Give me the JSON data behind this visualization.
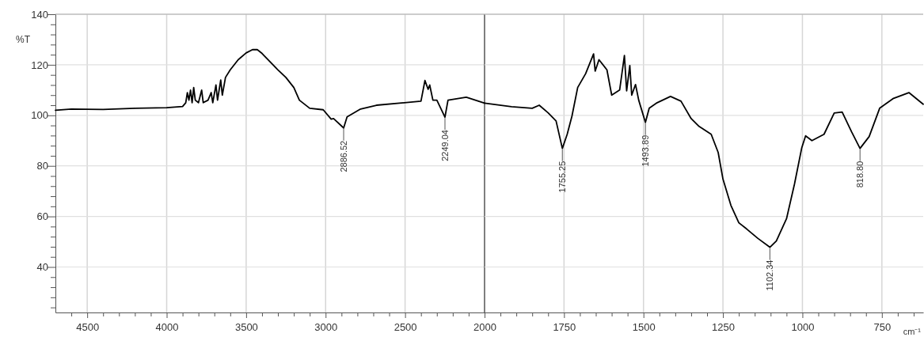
{
  "chart_data": [
    {
      "type": "line",
      "ylabel": "%T",
      "xlim": [
        4700,
        2000
      ],
      "ylim": [
        22,
        140
      ],
      "xticks": [
        {
          "value": 4600,
          "label": null
        },
        4500,
        {
          "value": 4400,
          "label": null
        },
        {
          "value": 4300,
          "label": null
        },
        {
          "value": 4200,
          "label": null
        },
        {
          "value": 4100,
          "label": null
        },
        4000,
        {
          "value": 3900,
          "label": null
        },
        {
          "value": 3800,
          "label": null
        },
        {
          "value": 3700,
          "label": null
        },
        {
          "value": 3600,
          "label": null
        },
        3500,
        {
          "value": 3400,
          "label": null
        },
        {
          "value": 3300,
          "label": null
        },
        {
          "value": 3200,
          "label": null
        },
        {
          "value": 3100,
          "label": null
        },
        3000,
        {
          "value": 2900,
          "label": null
        },
        {
          "value": 2800,
          "label": null
        },
        {
          "value": 2700,
          "label": null
        },
        {
          "value": 2600,
          "label": null
        },
        2500,
        {
          "value": 2400,
          "label": null
        },
        {
          "value": 2300,
          "label": null
        },
        {
          "value": 2200,
          "label": null
        },
        {
          "value": 2100,
          "label": null
        },
        2000
      ],
      "yticks": [
        {
          "value": 24,
          "label": null
        },
        {
          "value": 28,
          "label": null
        },
        {
          "value": 32,
          "label": null
        },
        {
          "value": 36,
          "label": null
        },
        40,
        {
          "value": 44,
          "label": null
        },
        {
          "value": 48,
          "label": null
        },
        {
          "value": 52,
          "label": null
        },
        {
          "value": 56,
          "label": null
        },
        60,
        {
          "value": 64,
          "label": null
        },
        {
          "value": 68,
          "label": null
        },
        {
          "value": 72,
          "label": null
        },
        {
          "value": 76,
          "label": null
        },
        80,
        {
          "value": 84,
          "label": null
        },
        {
          "value": 88,
          "label": null
        },
        {
          "value": 92,
          "label": null
        },
        {
          "value": 96,
          "label": null
        },
        100,
        {
          "value": 104,
          "label": null
        },
        {
          "value": 108,
          "label": null
        },
        {
          "value": 112,
          "label": null
        },
        {
          "value": 116,
          "label": null
        },
        120,
        {
          "value": 124,
          "label": null
        },
        {
          "value": 128,
          "label": null
        },
        {
          "value": 132,
          "label": null
        },
        {
          "value": 136,
          "label": null
        },
        140
      ],
      "grid": true,
      "marker": "none",
      "line_style": "solid",
      "ref_lines": [
        {
          "axis": "x",
          "value": 2000,
          "color": "#555555"
        }
      ],
      "annotations": [
        {
          "text": "2886.52",
          "x": 2886.52,
          "y": 95
        },
        {
          "text": "2249.04",
          "x": 2249.04,
          "y": 99.3
        }
      ],
      "series": [
        {
          "color": "#000000",
          "x": [
            4700,
            4600,
            4400,
            4200,
            4000,
            3900,
            3880,
            3870,
            3860,
            3850,
            3840,
            3830,
            3820,
            3800,
            3780,
            3770,
            3740,
            3720,
            3710,
            3690,
            3680,
            3660,
            3650,
            3630,
            3600,
            3550,
            3500,
            3460,
            3430,
            3400,
            3300,
            3250,
            3200,
            3165,
            3100,
            3015,
            2965,
            2950,
            2886.52,
            2865,
            2780,
            2680,
            2400,
            2375,
            2355,
            2345,
            2325,
            2300,
            2249.04,
            2230,
            2115,
            2000
          ],
          "values": [
            102,
            102.5,
            102.3,
            102.8,
            103,
            103.5,
            105,
            109,
            106,
            110,
            105,
            111,
            106,
            105,
            110,
            105,
            106,
            109,
            105,
            112,
            106,
            114,
            108,
            115,
            118,
            122,
            124.7,
            126,
            126,
            124.5,
            118,
            115,
            111,
            106,
            102.8,
            102.2,
            98.5,
            98.7,
            95,
            99.4,
            102.5,
            104,
            105.6,
            113.8,
            110.3,
            112,
            106,
            106,
            99.3,
            106,
            107.2,
            104.8
          ]
        }
      ]
    },
    {
      "type": "line",
      "xlabel": "cm⁻¹",
      "xlim": [
        2000,
        620
      ],
      "ylim": [
        22,
        140
      ],
      "xticks": [
        {
          "value": 1950,
          "label": null
        },
        {
          "value": 1900,
          "label": null
        },
        {
          "value": 1850,
          "label": null
        },
        {
          "value": 1800,
          "label": null
        },
        1750,
        {
          "value": 1700,
          "label": null
        },
        {
          "value": 1650,
          "label": null
        },
        {
          "value": 1600,
          "label": null
        },
        {
          "value": 1550,
          "label": null
        },
        1500,
        {
          "value": 1450,
          "label": null
        },
        {
          "value": 1400,
          "label": null
        },
        {
          "value": 1350,
          "label": null
        },
        {
          "value": 1300,
          "label": null
        },
        1250,
        {
          "value": 1200,
          "label": null
        },
        {
          "value": 1150,
          "label": null
        },
        {
          "value": 1100,
          "label": null
        },
        {
          "value": 1050,
          "label": null
        },
        1000,
        {
          "value": 950,
          "label": null
        },
        {
          "value": 900,
          "label": null
        },
        {
          "value": 850,
          "label": null
        },
        {
          "value": 800,
          "label": null
        },
        750,
        {
          "value": 700,
          "label": null
        },
        {
          "value": 650,
          "label": null
        }
      ],
      "yticks": [
        40,
        60,
        80,
        100,
        120,
        140
      ],
      "tick_labels": "x",
      "grid": true,
      "marker": "none",
      "line_style": "solid",
      "annotations": [
        {
          "text": "1755.25",
          "x": 1755.25,
          "y": 86.9
        },
        {
          "text": "1493.89",
          "x": 1493.89,
          "y": 97.2
        },
        {
          "text": "1102.34",
          "x": 1102.34,
          "y": 47.8
        },
        {
          "text": "818.80",
          "x": 818.8,
          "y": 86.9
        }
      ],
      "series": [
        {
          "color": "#000000",
          "x": [
            2000,
            1915,
            1850,
            1828,
            1800,
            1775,
            1755.25,
            1740,
            1725,
            1707,
            1682,
            1657,
            1652,
            1640,
            1615,
            1600,
            1575,
            1560,
            1553,
            1543,
            1537,
            1525,
            1515,
            1493.89,
            1482,
            1457,
            1415,
            1382,
            1350,
            1325,
            1287,
            1265,
            1250,
            1225,
            1200,
            1175,
            1140,
            1102.34,
            1082,
            1050,
            1025,
            1002,
            990,
            970,
            932,
            900,
            875,
            845,
            818.8,
            790,
            757,
            715,
            665,
            620
          ],
          "values": [
            104.8,
            103.4,
            102.8,
            104,
            101,
            97.8,
            86.9,
            92.5,
            99.7,
            111,
            116.5,
            124.3,
            117.5,
            122,
            118,
            108,
            110,
            123.7,
            109.7,
            119.7,
            108,
            112.2,
            106,
            97.2,
            102.8,
            105,
            107.5,
            105.6,
            98.7,
            95.6,
            92.5,
            85.3,
            74.8,
            64.4,
            57.5,
            55,
            51.3,
            47.8,
            50.3,
            59.1,
            72.8,
            87.2,
            91.9,
            90,
            92.5,
            100.9,
            101.3,
            93.4,
            86.9,
            91.6,
            102.8,
            106.6,
            109,
            104.4
          ]
        }
      ]
    }
  ]
}
